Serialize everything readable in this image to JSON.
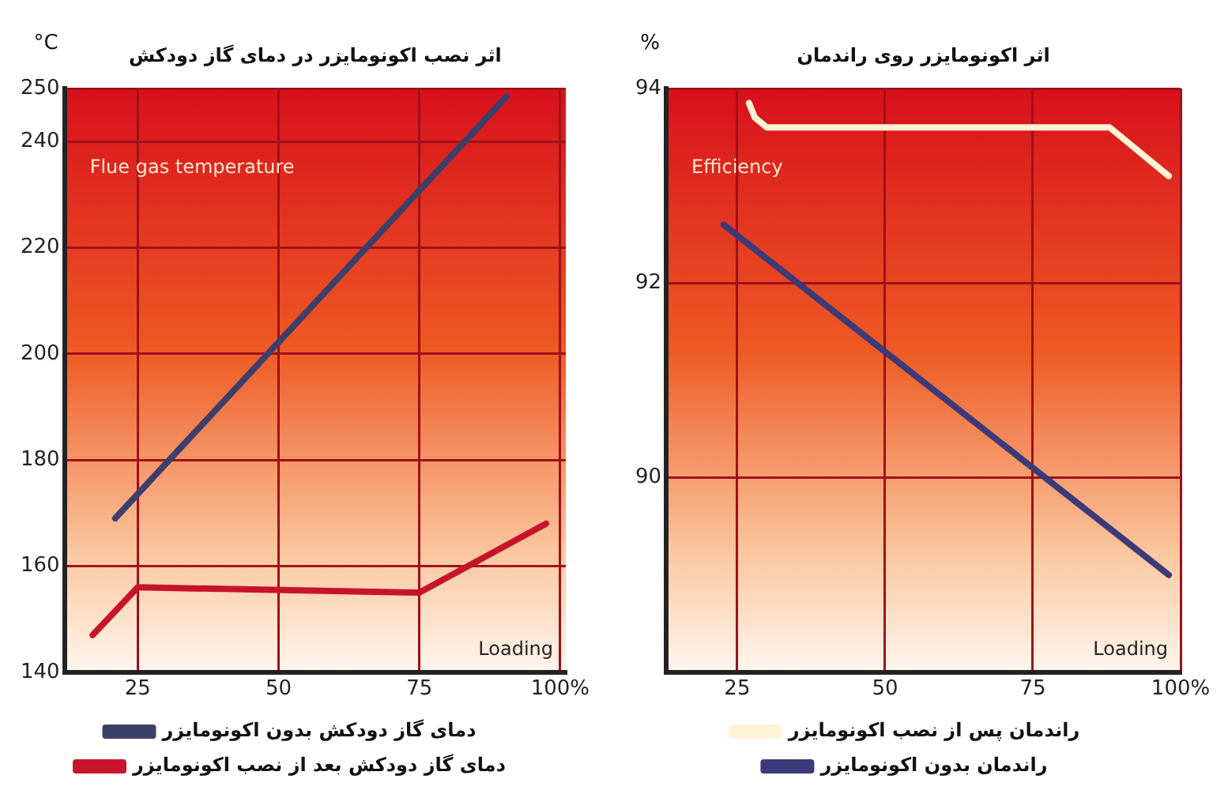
{
  "chart_data": [
    {
      "type": "line",
      "title": "اثر نصب اکونومایزر در دمای گاز دودکش",
      "ylabel": "°C",
      "annotations": [
        "Flue gas temperature",
        "Loading"
      ],
      "xlim": [
        12,
        101
      ],
      "xticks": [
        25,
        50,
        75,
        {
          "value": 100,
          "label": "100%"
        }
      ],
      "ylim": [
        140,
        250
      ],
      "yticks": [
        140,
        160,
        180,
        200,
        220,
        240,
        250
      ],
      "grid": true,
      "legend": "bottom",
      "marker": "none",
      "line_style": "solid",
      "series": [
        {
          "name": "دمای گاز دودکش بدون اکونومایزر",
          "color": "#3d3f6b",
          "x": [
            21,
            90.5
          ],
          "values": [
            169,
            248.5
          ]
        },
        {
          "name": "دمای گاز دودکش بعد از نصب اکونومایزر",
          "color": "#c8142a",
          "x": [
            17,
            25,
            75,
            97.5
          ],
          "values": [
            147,
            156,
            155,
            168
          ]
        }
      ]
    },
    {
      "type": "line",
      "title": "اثر اکونومایزر روی راندمان",
      "ylabel": "%",
      "annotations": [
        "Efficiency",
        "Loading"
      ],
      "xlim": [
        13,
        100
      ],
      "xticks": [
        25,
        50,
        75,
        {
          "value": 100,
          "label": "100%"
        }
      ],
      "ylim": [
        88,
        94
      ],
      "yticks": [
        90,
        92,
        94
      ],
      "grid": true,
      "legend": "bottom",
      "marker": "none",
      "line_style": "solid",
      "series": [
        {
          "name": "راندمان پس از نصب اکونومایزر",
          "color": "#fff3d6",
          "x": [
            27,
            28,
            30,
            88,
            98
          ],
          "values": [
            93.85,
            93.7,
            93.6,
            93.6,
            93.1
          ]
        },
        {
          "name": "راندمان بدون اکونومایزر",
          "color": "#3c3a78",
          "x": [
            22.7,
            98
          ],
          "values": [
            92.6,
            89
          ]
        }
      ]
    }
  ]
}
